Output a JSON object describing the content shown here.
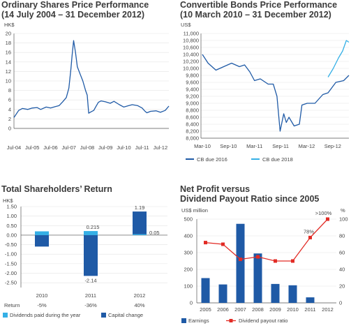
{
  "chart_data": [
    {
      "type": "line",
      "title": "Ordinary Shares Price Performance",
      "subtitle": "(14 July 2004 – 31 December 2012)",
      "ylabel": "HK$",
      "ylim": [
        0,
        20
      ],
      "yticks": [
        "0",
        "2",
        "4",
        "6",
        "8",
        "10",
        "12",
        "14",
        "16",
        "18",
        "20"
      ],
      "xtick_labels": [
        "Jul-04",
        "Jul-05",
        "Jul-06",
        "Jul-07",
        "Jul-08",
        "Jul-09",
        "Jul-10",
        "Jul-11",
        "Jul-12"
      ],
      "x": [
        2004.54,
        2004.8,
        2005.0,
        2005.3,
        2005.54,
        2005.8,
        2006.0,
        2006.3,
        2006.54,
        2006.8,
        2007.0,
        2007.2,
        2007.4,
        2007.54,
        2007.65,
        2007.72,
        2007.8,
        2007.9,
        2008.0,
        2008.15,
        2008.3,
        2008.45,
        2008.54,
        2008.62,
        2008.75,
        2008.9,
        2009.0,
        2009.15,
        2009.3,
        2009.54,
        2009.8,
        2010.0,
        2010.3,
        2010.54,
        2010.8,
        2011.0,
        2011.3,
        2011.54,
        2011.7,
        2011.8,
        2012.0,
        2012.3,
        2012.54,
        2012.8,
        2013.0
      ],
      "y": [
        2.3,
        3.8,
        4.2,
        4.0,
        4.3,
        4.4,
        4.0,
        4.5,
        4.3,
        4.6,
        4.8,
        5.6,
        6.5,
        8.5,
        12.5,
        15.5,
        18.5,
        16.0,
        13.0,
        11.5,
        10.0,
        8.0,
        7.0,
        3.2,
        3.5,
        3.8,
        4.5,
        5.5,
        5.8,
        5.6,
        5.3,
        5.7,
        5.0,
        4.5,
        4.8,
        5.0,
        4.8,
        4.3,
        3.6,
        3.3,
        3.6,
        3.7,
        3.4,
        3.8,
        4.7
      ]
    },
    {
      "type": "line",
      "title": "Convertible Bonds Price Performance",
      "subtitle": "(10 March 2010 – 31 December 2012)",
      "ylabel": "US$",
      "ylim": [
        8000,
        11000
      ],
      "yticks": [
        "8,000",
        "8,200",
        "8,400",
        "8,600",
        "8,800",
        "9,000",
        "9,200",
        "9,400",
        "9,600",
        "9,800",
        "10,000",
        "10,200",
        "10,400",
        "10,600",
        "10,800",
        "11,000"
      ],
      "xtick_labels": [
        "Mar-10",
        "Sep-10",
        "Mar-11",
        "Sep-11",
        "Mar-12",
        "Sep-12"
      ],
      "legend_position": "bottom",
      "series": [
        {
          "name": "CB due 2016",
          "color": "#1f5aa6",
          "x": [
            2010.19,
            2010.3,
            2010.45,
            2010.6,
            2010.75,
            2010.9,
            2011.0,
            2011.1,
            2011.19,
            2011.3,
            2011.45,
            2011.55,
            2011.62,
            2011.68,
            2011.75,
            2011.8,
            2011.85,
            2011.95,
            2012.05,
            2012.1,
            2012.2,
            2012.35,
            2012.5,
            2012.6,
            2012.75,
            2012.9,
            2013.0
          ],
          "y": [
            10400,
            10150,
            9950,
            10050,
            10150,
            10050,
            10100,
            9900,
            9650,
            9700,
            9550,
            9550,
            9200,
            8200,
            8700,
            8450,
            8600,
            8350,
            8400,
            8950,
            9000,
            9000,
            9250,
            9300,
            9600,
            9650,
            9800
          ]
        },
        {
          "name": "CB due 2018",
          "color": "#35b0e6",
          "x": [
            2012.6,
            2012.7,
            2012.8,
            2012.88,
            2012.95,
            2013.0
          ],
          "y": [
            9750,
            10000,
            10300,
            10500,
            10800,
            10750
          ]
        }
      ]
    },
    {
      "type": "bar",
      "title": "Total Shareholders’ Return",
      "ylabel": "HK$",
      "ylim": [
        -2.75,
        1.5
      ],
      "yticks": [
        "1.50",
        "1.00",
        "0.50",
        "0.00",
        "-0.50",
        "-1.00",
        "-1.50",
        "-2.00",
        "-2.50"
      ],
      "categories": [
        "2010",
        "2011",
        "2012"
      ],
      "returns": [
        "-5%",
        "-36%",
        "40%"
      ],
      "return_label": "Return",
      "series": [
        {
          "name": "Dividends paid during the year",
          "color": "#35b0e6",
          "values": [
            0.2,
            0.215,
            0.05
          ]
        },
        {
          "name": "Capital change",
          "color": "#1f5aa6",
          "values": [
            -0.6,
            -2.14,
            1.19
          ]
        }
      ],
      "data_labels": [
        "0.215",
        "-2.14",
        "1.19",
        "0.05"
      ]
    },
    {
      "type": "bar",
      "title": "Net Profit versus",
      "subtitle": "Dividend Payout Ratio since 2005",
      "ylabel_left": "US$ million",
      "ylabel_right": "%",
      "ylim_left": [
        0,
        500
      ],
      "ylim_right": [
        0,
        100
      ],
      "yticks_left": [
        "0",
        "100",
        "200",
        "300",
        "400",
        "500"
      ],
      "yticks_right": [
        "0",
        "20",
        "40",
        "60",
        "80",
        "100"
      ],
      "categories": [
        "2005",
        "2006",
        "2007",
        "2008",
        "2009",
        "2010",
        "2011",
        "2012"
      ],
      "series": [
        {
          "name": "Earnings",
          "color": "#1f5aa6",
          "values": [
            148,
            110,
            472,
            295,
            113,
            105,
            33,
            0
          ]
        },
        {
          "name": "Dividend payout ratio",
          "color": "#e22b25",
          "values": [
            72,
            70,
            52,
            55,
            50,
            50,
            78,
            100
          ]
        }
      ],
      "data_labels": [
        "78%",
        ">100%"
      ]
    }
  ]
}
